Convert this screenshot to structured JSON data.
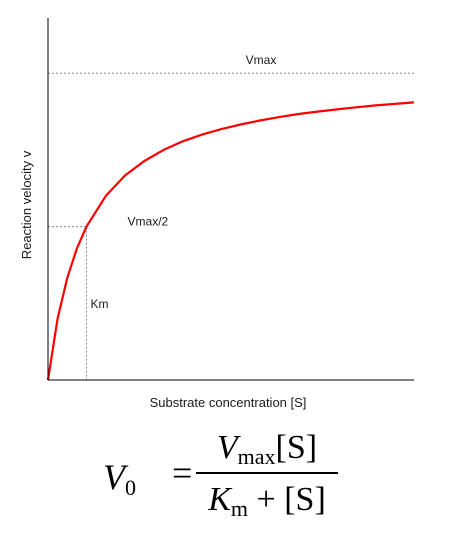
{
  "chart_data": {
    "type": "line",
    "title": "",
    "xlabel": "Substrate concentration [S]",
    "ylabel": "Reaction velocity v",
    "vmax": 1.0,
    "km": 1.0,
    "xlim": [
      0,
      9.5
    ],
    "ylim": [
      0,
      1.18
    ],
    "series": [
      {
        "x": [
          0,
          0.25,
          0.5,
          0.75,
          1.0,
          1.5,
          2.0,
          2.5,
          3.0,
          3.5,
          4.0,
          4.5,
          5.0,
          5.5,
          6.0,
          6.5,
          7.0,
          7.5,
          8.0,
          8.5,
          9.0,
          9.5
        ],
        "y": [
          0,
          0.2,
          0.333,
          0.429,
          0.5,
          0.6,
          0.667,
          0.714,
          0.75,
          0.778,
          0.8,
          0.818,
          0.833,
          0.846,
          0.857,
          0.867,
          0.875,
          0.882,
          0.889,
          0.895,
          0.9,
          0.905
        ],
        "color": "#ff0000"
      }
    ],
    "annotations": {
      "vmax_label": "Vmax",
      "half_vmax_label": "Vmax/2",
      "km_label": "Km"
    },
    "grid": false
  },
  "equation": {
    "lhs_symbol": "V",
    "lhs_sub": "0",
    "equals": "=",
    "num_symbol": "V",
    "num_sub": "max",
    "num_term": "[S]",
    "den_symbol": "K",
    "den_sub": "m",
    "den_plus": " + ",
    "den_term": "[S]"
  }
}
